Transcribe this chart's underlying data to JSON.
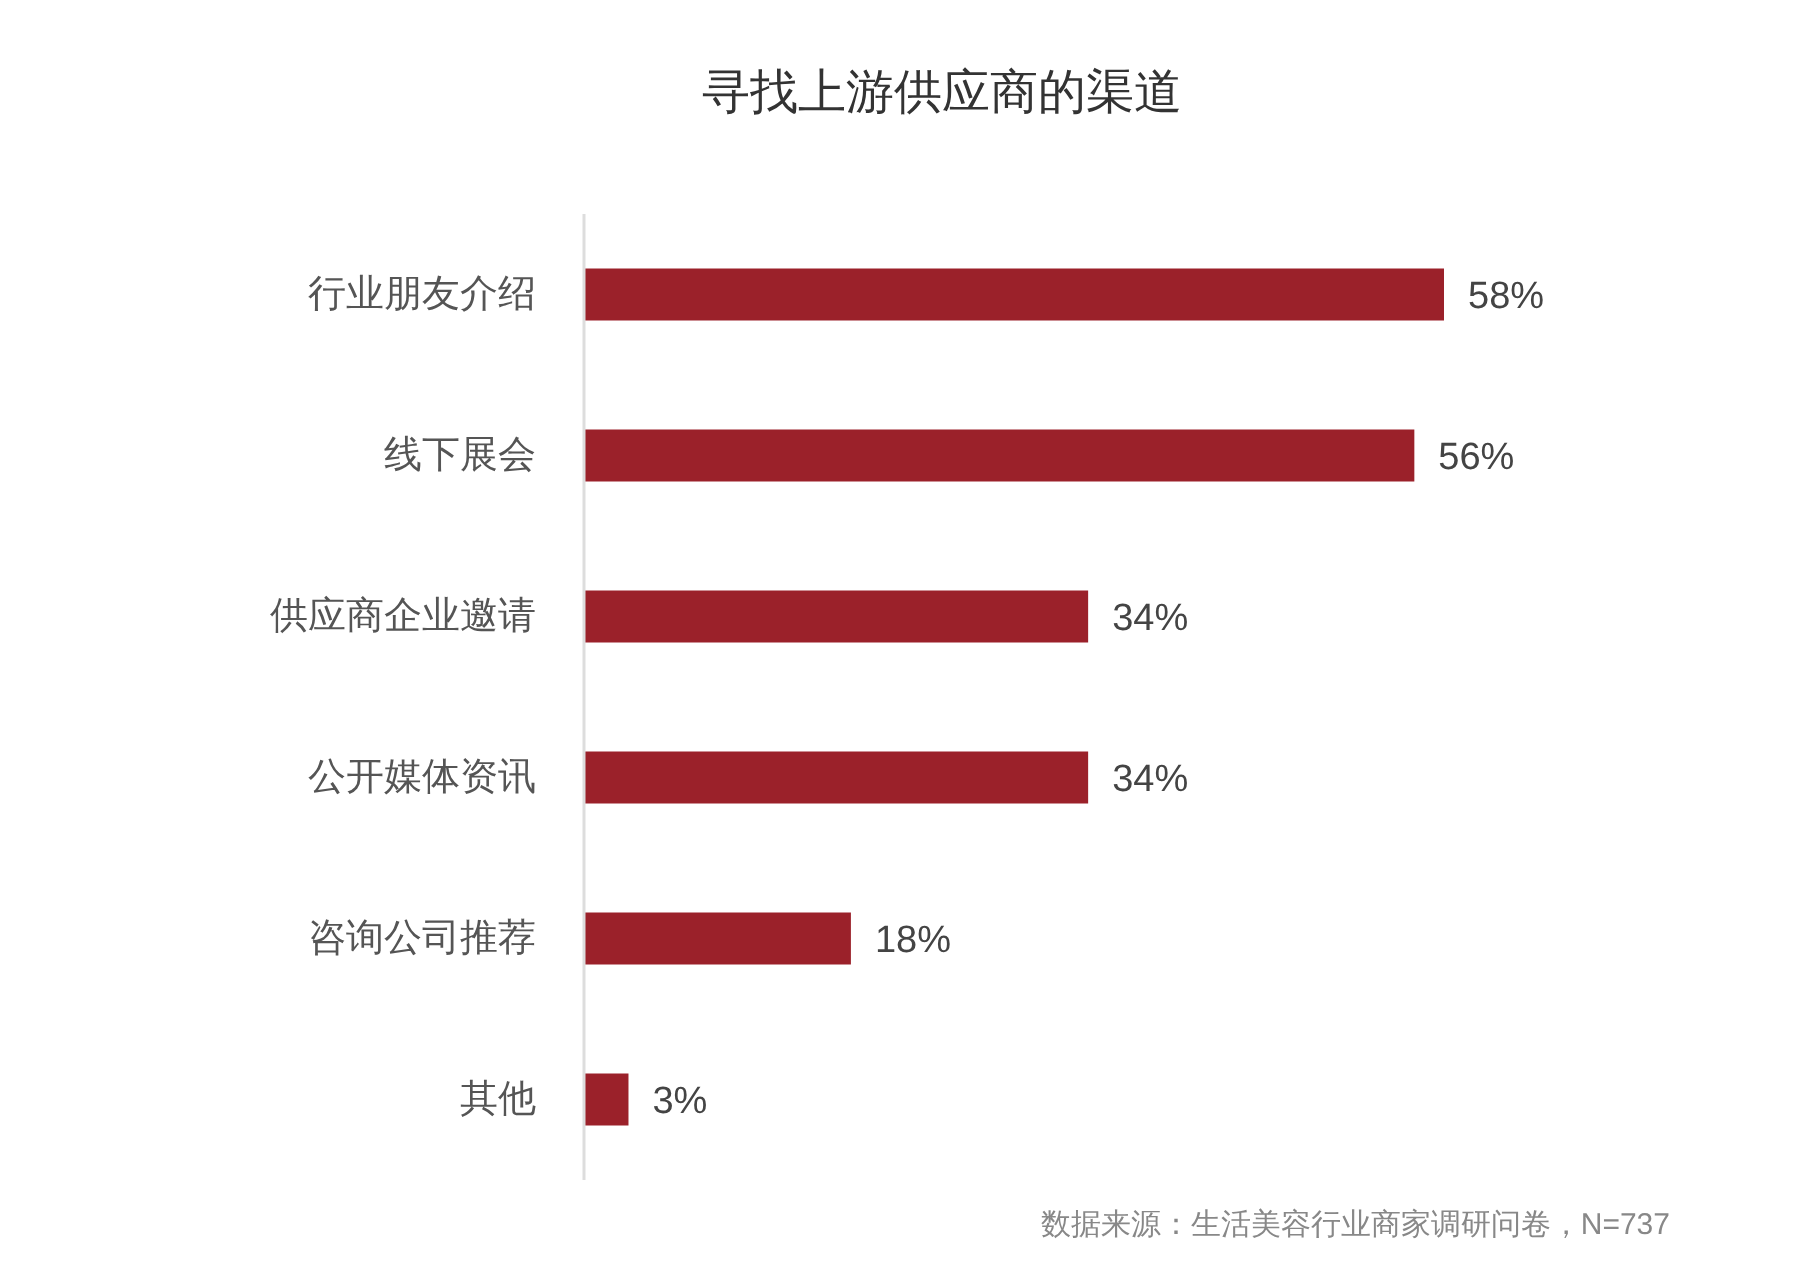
{
  "chart_data": {
    "type": "bar",
    "orientation": "horizontal",
    "title": "寻找上游供应商的渠道",
    "categories": [
      "行业朋友介绍",
      "线下展会",
      "供应商企业邀请",
      "公开媒体资讯",
      "咨询公司推荐",
      "其他"
    ],
    "values": [
      58,
      56,
      34,
      34,
      18,
      3
    ],
    "color": "#9b212a",
    "value_labels": [
      "58%",
      "56%",
      "34%",
      "34%",
      "18%",
      "3%"
    ],
    "annotations": [
      "数据来源：生活美容行业商家调研问卷，N=737"
    ]
  }
}
